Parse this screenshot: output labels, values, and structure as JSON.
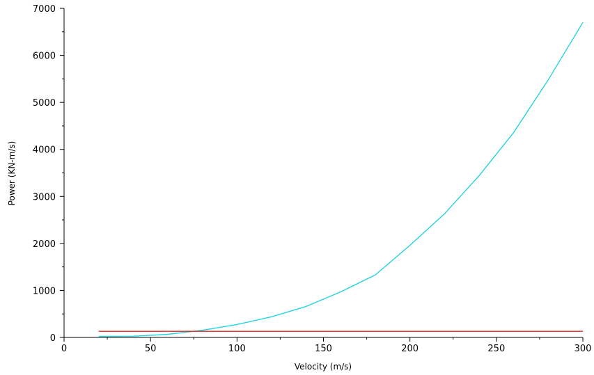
{
  "chart_data": {
    "type": "line",
    "title": "",
    "xlabel": "Velocity (m/s)",
    "ylabel": "Power (KN-m/s)",
    "xlim": [
      0,
      300
    ],
    "ylim": [
      0,
      7000
    ],
    "x_ticks": [
      0,
      50,
      100,
      150,
      200,
      250,
      300
    ],
    "y_ticks": [
      0,
      1000,
      2000,
      3000,
      4000,
      5000,
      6000,
      7000
    ],
    "x_minor_step": 25,
    "y_minor_step": 500,
    "grid": false,
    "legend": "none",
    "series": [
      {
        "color": "#22d3e0",
        "x": [
          20,
          40,
          60,
          80,
          100,
          120,
          140,
          160,
          180,
          200,
          220,
          240,
          260,
          280,
          300
        ],
        "y": [
          20,
          25,
          67,
          153,
          275,
          440,
          660,
          970,
          1330,
          1960,
          2630,
          3440,
          4360,
          5480,
          6700
        ]
      },
      {
        "color": "#dd2222",
        "x": [
          20,
          300
        ],
        "y": [
          130,
          130
        ]
      }
    ]
  }
}
